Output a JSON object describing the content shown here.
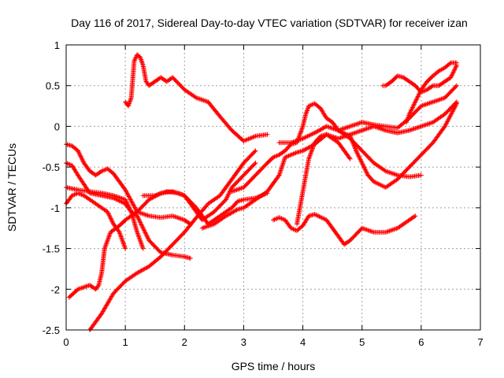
{
  "chart_data": {
    "type": "scatter",
    "title": "Day 116 of 2017, Sidereal Day-to-day VTEC variation (SDTVAR) for receiver izan",
    "xlabel": "GPS time / hours",
    "ylabel": "SDTVAR / TECUs",
    "xlim": [
      0,
      7
    ],
    "ylim": [
      -2.5,
      1
    ],
    "xticks": [
      0,
      1,
      2,
      3,
      4,
      5,
      6,
      7
    ],
    "yticks": [
      -2.5,
      -2,
      -1.5,
      -1,
      -0.5,
      0,
      0.5,
      1
    ],
    "xtick_labels": [
      "0",
      "1",
      "2",
      "3",
      "4",
      "5",
      "6",
      "7"
    ],
    "ytick_labels": [
      "-2.5",
      "-2",
      "-1.5",
      "-1",
      "-0.5",
      "0",
      "0.5",
      "1"
    ],
    "grid": true,
    "legend": "none",
    "marker": "+",
    "color": "#ff0000",
    "series": [
      {
        "x": [
          0.0,
          0.1,
          0.2,
          0.3,
          0.4,
          0.5,
          0.6,
          0.7,
          0.8,
          0.9,
          1.0,
          1.2,
          1.4,
          1.6,
          1.8,
          2.0,
          2.1
        ],
        "y": [
          -0.22,
          -0.24,
          -0.3,
          -0.45,
          -0.55,
          -0.6,
          -0.55,
          -0.52,
          -0.58,
          -0.68,
          -0.78,
          -1.05,
          -1.1,
          -1.12,
          -1.1,
          -1.15,
          -1.2
        ]
      },
      {
        "x": [
          0.0,
          0.1,
          0.2,
          0.4,
          0.6,
          0.8,
          1.0,
          1.1,
          1.2,
          1.3,
          1.4,
          1.6,
          1.8,
          2.0,
          2.1
        ],
        "y": [
          -0.45,
          -0.48,
          -0.6,
          -0.82,
          -0.85,
          -0.88,
          -0.95,
          -1.05,
          -1.1,
          -1.25,
          -1.4,
          -1.55,
          -1.58,
          -1.6,
          -1.62
        ]
      },
      {
        "x": [
          0.0,
          0.2,
          0.4,
          0.6,
          0.8,
          1.0,
          1.1,
          1.2,
          1.3
        ],
        "y": [
          -0.75,
          -0.78,
          -0.8,
          -0.82,
          -0.85,
          -0.9,
          -1.05,
          -1.3,
          -1.5
        ]
      },
      {
        "x": [
          0.0,
          0.1,
          0.2,
          0.3,
          0.5,
          0.7,
          0.8,
          0.9,
          1.0
        ],
        "y": [
          -0.95,
          -0.85,
          -0.82,
          -0.85,
          -0.95,
          -1.05,
          -1.2,
          -1.3,
          -1.5
        ]
      },
      {
        "x": [
          0.05,
          0.2,
          0.4,
          0.5,
          0.55,
          0.6,
          0.65,
          0.75,
          0.9,
          1.0,
          1.2,
          1.4,
          1.6,
          1.8,
          2.0,
          2.2,
          2.4,
          2.6,
          2.8,
          2.9,
          3.0,
          3.2,
          3.4
        ],
        "y": [
          -2.1,
          -2.0,
          -1.95,
          -2.0,
          -1.95,
          -1.8,
          -1.5,
          -1.3,
          -1.22,
          -1.15,
          -1.05,
          -0.9,
          -0.82,
          -0.8,
          -0.85,
          -1.0,
          -1.2,
          -1.1,
          -1.0,
          -0.92,
          -0.9,
          -0.88,
          -0.82
        ]
      },
      {
        "x": [
          0.4,
          0.6,
          0.8,
          1.0,
          1.2,
          1.4,
          1.6,
          1.8,
          2.0,
          2.2,
          2.4,
          2.6,
          2.8,
          3.0,
          3.2
        ],
        "y": [
          -2.5,
          -2.3,
          -2.05,
          -1.9,
          -1.8,
          -1.72,
          -1.6,
          -1.45,
          -1.3,
          -1.12,
          -0.95,
          -0.85,
          -0.65,
          -0.45,
          -0.3
        ]
      },
      {
        "x": [
          1.0,
          1.05,
          1.1,
          1.15,
          1.2,
          1.25,
          1.3,
          1.35,
          1.4,
          1.5,
          1.6,
          1.7,
          1.8,
          2.0,
          2.2,
          2.4,
          2.6,
          2.8,
          3.0,
          3.2,
          3.4
        ],
        "y": [
          0.3,
          0.25,
          0.35,
          0.8,
          0.88,
          0.85,
          0.75,
          0.55,
          0.5,
          0.55,
          0.6,
          0.55,
          0.6,
          0.45,
          0.35,
          0.3,
          0.12,
          -0.05,
          -0.18,
          -0.12,
          -0.1
        ]
      },
      {
        "x": [
          1.3,
          1.5,
          1.7,
          1.9,
          2.0,
          2.1,
          2.2,
          2.3,
          2.5,
          2.7,
          2.8,
          3.0,
          3.2
        ],
        "y": [
          -0.85,
          -0.85,
          -0.8,
          -0.82,
          -0.85,
          -0.95,
          -1.05,
          -1.15,
          -1.05,
          -0.9,
          -0.75,
          -0.6,
          -0.45
        ]
      },
      {
        "x": [
          2.3,
          2.5,
          2.7,
          2.9,
          3.0,
          3.2,
          3.4,
          3.6,
          3.7,
          3.9,
          4.0,
          4.2,
          4.4,
          4.6,
          4.8
        ],
        "y": [
          -1.25,
          -1.2,
          -1.1,
          -1.02,
          -1.0,
          -0.9,
          -0.8,
          -0.6,
          -0.38,
          -0.32,
          -0.3,
          -0.22,
          -0.1,
          -0.2,
          -0.4
        ]
      },
      {
        "x": [
          2.8,
          3.0,
          3.2,
          3.4,
          3.5,
          3.6,
          3.7,
          3.8,
          3.9,
          4.0,
          4.05,
          4.1,
          4.2,
          4.3,
          4.4,
          4.5,
          4.6,
          4.8,
          5.0,
          5.2,
          5.4,
          5.6,
          5.8,
          6.0
        ],
        "y": [
          -0.8,
          -0.75,
          -0.6,
          -0.45,
          -0.38,
          -0.35,
          -0.3,
          -0.22,
          -0.2,
          0.0,
          0.15,
          0.25,
          0.28,
          0.22,
          0.1,
          0.05,
          -0.05,
          -0.15,
          -0.3,
          -0.45,
          -0.55,
          -0.6,
          -0.62,
          -0.6
        ]
      },
      {
        "x": [
          3.5,
          3.6,
          3.7,
          3.8,
          3.9,
          4.0,
          4.1,
          4.2,
          4.4,
          4.6,
          4.7,
          4.8,
          5.0,
          5.2,
          5.4,
          5.6,
          5.8,
          5.9
        ],
        "y": [
          -1.15,
          -1.12,
          -1.15,
          -1.25,
          -1.28,
          -1.22,
          -1.1,
          -1.08,
          -1.15,
          -1.35,
          -1.45,
          -1.4,
          -1.25,
          -1.3,
          -1.3,
          -1.25,
          -1.15,
          -1.1
        ]
      },
      {
        "x": [
          3.9,
          4.0,
          4.1,
          4.2,
          4.3,
          4.4,
          4.6,
          4.8,
          5.0,
          5.2,
          5.4,
          5.6,
          5.8,
          6.0,
          6.2,
          6.4,
          6.6
        ],
        "y": [
          -1.2,
          -0.8,
          -0.4,
          -0.2,
          -0.12,
          -0.1,
          -0.15,
          -0.1,
          -0.05,
          0.0,
          -0.05,
          -0.08,
          -0.05,
          0.0,
          0.05,
          0.15,
          0.3
        ]
      },
      {
        "x": [
          4.6,
          4.8,
          4.9,
          5.0,
          5.1,
          5.2,
          5.4,
          5.6,
          5.8,
          6.0,
          6.2,
          6.4,
          6.6
        ],
        "y": [
          -0.05,
          -0.12,
          -0.3,
          -0.45,
          -0.6,
          -0.68,
          -0.75,
          -0.65,
          -0.5,
          -0.35,
          -0.2,
          0.0,
          0.28
        ]
      },
      {
        "x": [
          3.6,
          3.8,
          4.0,
          4.2,
          4.4,
          4.6,
          4.8,
          5.0,
          5.2,
          5.4,
          5.6,
          5.8,
          6.0,
          6.2,
          6.4,
          6.6
        ],
        "y": [
          -0.2,
          -0.2,
          -0.15,
          -0.08,
          0.0,
          -0.05,
          0.0,
          0.05,
          0.02,
          0.0,
          -0.02,
          0.1,
          0.25,
          0.3,
          0.35,
          0.5
        ]
      },
      {
        "x": [
          5.35,
          5.4,
          5.5,
          5.6,
          5.7,
          5.8,
          5.9,
          6.0,
          6.1,
          6.2,
          6.3,
          6.4,
          6.5,
          6.6
        ],
        "y": [
          0.5,
          0.5,
          0.55,
          0.62,
          0.6,
          0.55,
          0.5,
          0.42,
          0.45,
          0.5,
          0.5,
          0.55,
          0.6,
          0.75
        ]
      },
      {
        "x": [
          5.75,
          5.8,
          5.9,
          6.0,
          6.1,
          6.2,
          6.3,
          6.4,
          6.5,
          6.6
        ],
        "y": [
          0.05,
          0.15,
          0.3,
          0.45,
          0.55,
          0.62,
          0.68,
          0.72,
          0.78,
          0.78
        ]
      }
    ]
  }
}
